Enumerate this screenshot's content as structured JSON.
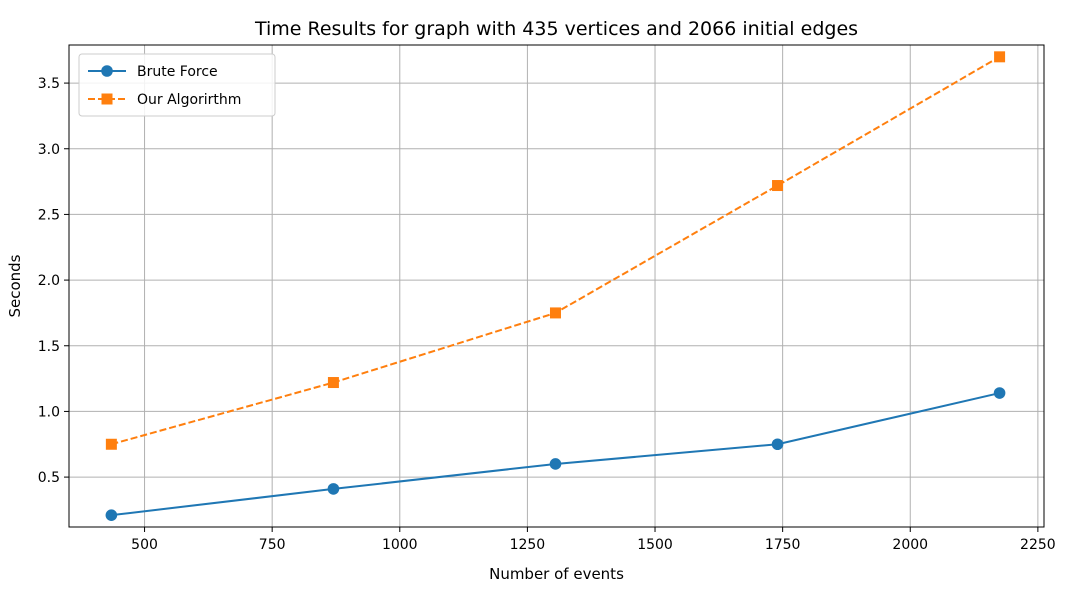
{
  "chart_data": {
    "type": "line",
    "title": "Time Results for graph with 435 vertices and 2066 initial edges",
    "xlabel": "Number of events",
    "ylabel": "Seconds",
    "xlim": [
      352,
      2262
    ],
    "ylim": [
      0.12,
      3.79
    ],
    "xticks": [
      500,
      750,
      1000,
      1250,
      1500,
      1750,
      2000,
      2250
    ],
    "xtick_labels": [
      "500",
      "750",
      "1000",
      "1250",
      "1500",
      "1750",
      "2000",
      "2250"
    ],
    "yticks": [
      0.5,
      1.0,
      1.5,
      2.0,
      2.5,
      3.0,
      3.5
    ],
    "ytick_labels": [
      "0.5",
      "1.0",
      "1.5",
      "2.0",
      "2.5",
      "3.0",
      "3.5"
    ],
    "grid": true,
    "legend_position": "top-left",
    "series": [
      {
        "name": "Brute Force",
        "color": "#1f77b4",
        "line_style": "solid",
        "marker": "circle",
        "x": [
          435,
          870,
          1305,
          1740,
          2175
        ],
        "y": [
          0.21,
          0.41,
          0.6,
          0.75,
          1.14
        ]
      },
      {
        "name": "Our Algorirthm",
        "color": "#ff7f0e",
        "line_style": "dashed",
        "marker": "square",
        "x": [
          435,
          870,
          1305,
          1740,
          2175
        ],
        "y": [
          0.75,
          1.22,
          1.75,
          2.72,
          3.7
        ]
      }
    ]
  }
}
